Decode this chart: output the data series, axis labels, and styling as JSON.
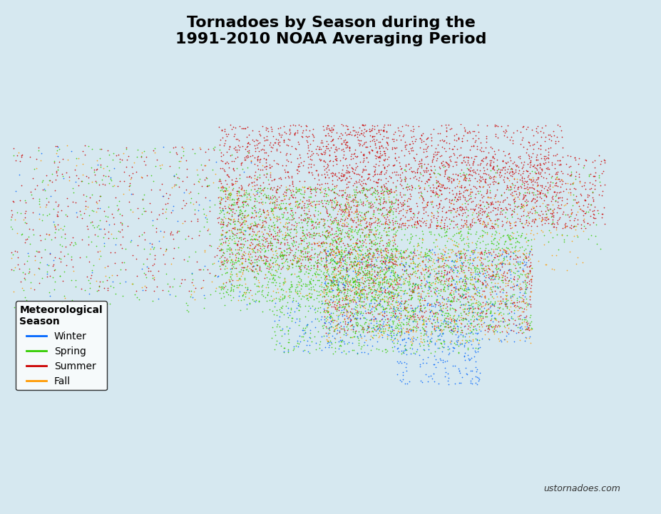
{
  "title_line1": "Tornadoes by Season during the",
  "title_line2": "1991-2010 NOAA Averaging Period",
  "title_fontsize": 16,
  "title_fontweight": "bold",
  "background_color": "#d6e8f0",
  "map_bg_color": "#e8f4f8",
  "land_color": "#f0ece8",
  "border_color": "#555555",
  "watermark": "ustornadoes.com",
  "legend_title": "Meteorological\nSeason",
  "seasons": [
    "Winter",
    "Spring",
    "Summer",
    "Fall"
  ],
  "season_colors": [
    "#0066ff",
    "#33cc00",
    "#cc0000",
    "#ff9900"
  ],
  "fig_width": 9.28,
  "fig_height": 7.21,
  "dpi": 100,
  "seed": 42,
  "n_winter": 800,
  "n_spring": 3500,
  "n_summer": 4500,
  "n_fall": 1200
}
